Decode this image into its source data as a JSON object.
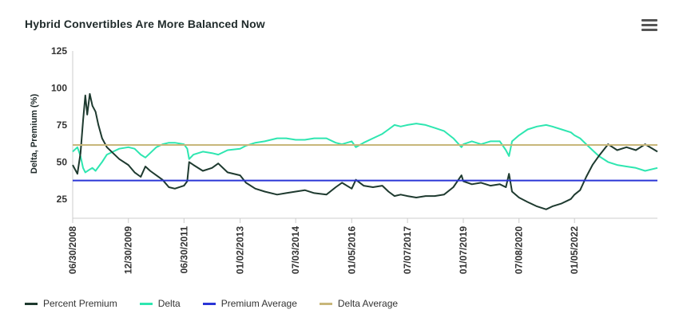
{
  "title": "Hybrid Convertibles Are More Balanced Now",
  "menu_icon": "hamburger-menu-icon",
  "chart_data": {
    "type": "line",
    "ylabel": "Delta, Premium (%)",
    "xlabel": "",
    "ylim": [
      12,
      125
    ],
    "yticks": [
      25,
      50,
      75,
      100,
      125
    ],
    "xlim": [
      "2008-06-30",
      "2024-03-31"
    ],
    "xtick_labels": [
      "06/30/2008",
      "12/30/2009",
      "06/30/2011",
      "01/02/2013",
      "07/03/2014",
      "01/05/2016",
      "07/07/2017",
      "01/07/2019",
      "07/08/2020",
      "01/05/2022"
    ],
    "xtick_dates": [
      "2008-06-30",
      "2009-12-30",
      "2011-06-30",
      "2013-01-02",
      "2014-07-03",
      "2016-01-05",
      "2017-07-07",
      "2019-01-07",
      "2020-07-08",
      "2022-01-05"
    ],
    "series": [
      {
        "name": "Percent Premium",
        "color": "#1e3a2f",
        "style": "line",
        "points": [
          [
            "2008-06-30",
            48
          ],
          [
            "2008-08-15",
            42
          ],
          [
            "2008-09-15",
            56
          ],
          [
            "2008-10-10",
            78
          ],
          [
            "2008-11-01",
            95
          ],
          [
            "2008-11-20",
            82
          ],
          [
            "2008-12-15",
            96
          ],
          [
            "2009-01-10",
            88
          ],
          [
            "2009-02-10",
            84
          ],
          [
            "2009-03-10",
            75
          ],
          [
            "2009-04-15",
            66
          ],
          [
            "2009-06-01",
            60
          ],
          [
            "2009-08-01",
            56
          ],
          [
            "2009-10-01",
            52
          ],
          [
            "2009-12-30",
            48
          ],
          [
            "2010-03-01",
            43
          ],
          [
            "2010-05-01",
            40
          ],
          [
            "2010-06-15",
            47
          ],
          [
            "2010-08-01",
            44
          ],
          [
            "2010-10-01",
            41
          ],
          [
            "2010-12-01",
            38
          ],
          [
            "2011-02-01",
            33
          ],
          [
            "2011-04-01",
            32
          ],
          [
            "2011-06-30",
            34
          ],
          [
            "2011-08-01",
            37
          ],
          [
            "2011-08-20",
            50
          ],
          [
            "2011-10-01",
            48
          ],
          [
            "2012-01-01",
            44
          ],
          [
            "2012-04-01",
            46
          ],
          [
            "2012-06-01",
            49
          ],
          [
            "2012-09-01",
            43
          ],
          [
            "2013-01-02",
            41
          ],
          [
            "2013-03-01",
            36
          ],
          [
            "2013-06-01",
            32
          ],
          [
            "2013-09-01",
            30
          ],
          [
            "2014-01-01",
            28
          ],
          [
            "2014-04-01",
            29
          ],
          [
            "2014-07-03",
            30
          ],
          [
            "2014-10-01",
            31
          ],
          [
            "2015-01-01",
            29
          ],
          [
            "2015-05-01",
            28
          ],
          [
            "2015-08-01",
            33
          ],
          [
            "2015-10-01",
            36
          ],
          [
            "2016-01-05",
            32
          ],
          [
            "2016-02-15",
            38
          ],
          [
            "2016-05-01",
            34
          ],
          [
            "2016-08-01",
            33
          ],
          [
            "2016-11-01",
            34
          ],
          [
            "2017-01-01",
            30
          ],
          [
            "2017-03-01",
            27
          ],
          [
            "2017-05-01",
            28
          ],
          [
            "2017-07-07",
            27
          ],
          [
            "2017-10-01",
            26
          ],
          [
            "2018-01-01",
            27
          ],
          [
            "2018-04-01",
            27
          ],
          [
            "2018-07-01",
            28
          ],
          [
            "2018-10-01",
            33
          ],
          [
            "2018-12-20",
            41
          ],
          [
            "2019-01-07",
            37
          ],
          [
            "2019-04-01",
            35
          ],
          [
            "2019-07-01",
            36
          ],
          [
            "2019-10-01",
            34
          ],
          [
            "2020-01-01",
            35
          ],
          [
            "2020-03-01",
            33
          ],
          [
            "2020-04-01",
            42
          ],
          [
            "2020-05-01",
            30
          ],
          [
            "2020-07-08",
            26
          ],
          [
            "2020-10-01",
            23
          ],
          [
            "2021-01-01",
            20
          ],
          [
            "2021-04-01",
            18
          ],
          [
            "2021-06-01",
            20
          ],
          [
            "2021-09-01",
            22
          ],
          [
            "2021-12-01",
            25
          ],
          [
            "2022-01-05",
            28
          ],
          [
            "2022-03-01",
            31
          ],
          [
            "2022-05-01",
            40
          ],
          [
            "2022-07-01",
            48
          ],
          [
            "2022-09-01",
            54
          ],
          [
            "2022-12-01",
            62
          ],
          [
            "2023-03-01",
            58
          ],
          [
            "2023-06-01",
            60
          ],
          [
            "2023-09-01",
            58
          ],
          [
            "2023-12-01",
            62
          ],
          [
            "2024-03-31",
            57
          ]
        ]
      },
      {
        "name": "Delta",
        "color": "#2ee6b0",
        "style": "line",
        "points": [
          [
            "2008-06-30",
            57
          ],
          [
            "2008-08-15",
            60
          ],
          [
            "2008-09-15",
            54
          ],
          [
            "2008-10-10",
            46
          ],
          [
            "2008-11-01",
            43
          ],
          [
            "2008-12-15",
            45
          ],
          [
            "2009-01-10",
            46
          ],
          [
            "2009-02-10",
            44
          ],
          [
            "2009-04-15",
            50
          ],
          [
            "2009-06-01",
            55
          ],
          [
            "2009-08-01",
            57
          ],
          [
            "2009-10-01",
            59
          ],
          [
            "2009-12-30",
            60
          ],
          [
            "2010-03-01",
            59
          ],
          [
            "2010-05-01",
            55
          ],
          [
            "2010-06-15",
            53
          ],
          [
            "2010-08-01",
            56
          ],
          [
            "2010-10-01",
            60
          ],
          [
            "2010-12-01",
            62
          ],
          [
            "2011-02-01",
            63
          ],
          [
            "2011-04-01",
            63
          ],
          [
            "2011-06-30",
            62
          ],
          [
            "2011-08-01",
            59
          ],
          [
            "2011-08-20",
            52
          ],
          [
            "2011-10-01",
            55
          ],
          [
            "2012-01-01",
            57
          ],
          [
            "2012-04-01",
            56
          ],
          [
            "2012-06-01",
            55
          ],
          [
            "2012-09-01",
            58
          ],
          [
            "2013-01-02",
            59
          ],
          [
            "2013-03-01",
            61
          ],
          [
            "2013-06-01",
            63
          ],
          [
            "2013-09-01",
            64
          ],
          [
            "2014-01-01",
            66
          ],
          [
            "2014-04-01",
            66
          ],
          [
            "2014-07-03",
            65
          ],
          [
            "2014-10-01",
            65
          ],
          [
            "2015-01-01",
            66
          ],
          [
            "2015-05-01",
            66
          ],
          [
            "2015-08-01",
            63
          ],
          [
            "2015-10-01",
            62
          ],
          [
            "2016-01-05",
            64
          ],
          [
            "2016-02-15",
            60
          ],
          [
            "2016-05-01",
            63
          ],
          [
            "2016-08-01",
            66
          ],
          [
            "2016-11-01",
            69
          ],
          [
            "2017-01-01",
            72
          ],
          [
            "2017-03-01",
            75
          ],
          [
            "2017-05-01",
            74
          ],
          [
            "2017-07-07",
            75
          ],
          [
            "2017-10-01",
            76
          ],
          [
            "2018-01-01",
            75
          ],
          [
            "2018-04-01",
            73
          ],
          [
            "2018-07-01",
            71
          ],
          [
            "2018-10-01",
            66
          ],
          [
            "2018-12-20",
            60
          ],
          [
            "2019-01-07",
            62
          ],
          [
            "2019-04-01",
            64
          ],
          [
            "2019-07-01",
            62
          ],
          [
            "2019-10-01",
            64
          ],
          [
            "2020-01-01",
            64
          ],
          [
            "2020-03-01",
            58
          ],
          [
            "2020-04-01",
            54
          ],
          [
            "2020-05-01",
            64
          ],
          [
            "2020-07-08",
            68
          ],
          [
            "2020-10-01",
            72
          ],
          [
            "2021-01-01",
            74
          ],
          [
            "2021-04-01",
            75
          ],
          [
            "2021-06-01",
            74
          ],
          [
            "2021-09-01",
            72
          ],
          [
            "2021-12-01",
            70
          ],
          [
            "2022-01-05",
            68
          ],
          [
            "2022-03-01",
            66
          ],
          [
            "2022-05-01",
            62
          ],
          [
            "2022-07-01",
            58
          ],
          [
            "2022-09-01",
            54
          ],
          [
            "2022-12-01",
            50
          ],
          [
            "2023-03-01",
            48
          ],
          [
            "2023-06-01",
            47
          ],
          [
            "2023-09-01",
            46
          ],
          [
            "2023-12-01",
            44
          ],
          [
            "2024-03-31",
            46
          ]
        ]
      },
      {
        "name": "Premium Average",
        "color": "#2a35d6",
        "style": "hline",
        "value": 37.5
      },
      {
        "name": "Delta Average",
        "color": "#c8b77a",
        "style": "hline",
        "value": 61.5
      }
    ],
    "grid": false,
    "legend_position": "bottom-left"
  }
}
